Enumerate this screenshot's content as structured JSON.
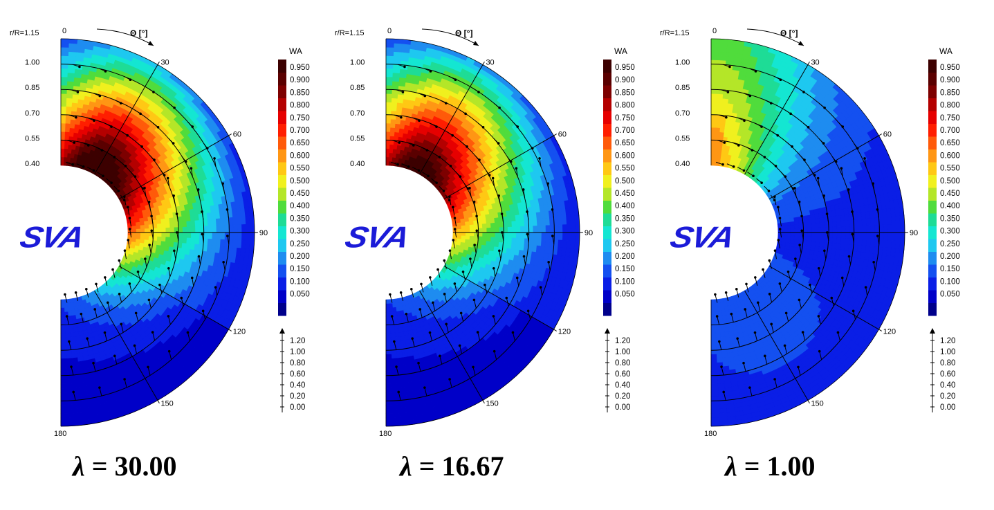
{
  "colors": {
    "bands": [
      "#00008b",
      "#0000c8",
      "#0a1ee6",
      "#1450f0",
      "#1e8cf0",
      "#1ec8f0",
      "#14e6d2",
      "#1edc96",
      "#50dc3c",
      "#b4e628",
      "#f0f01e",
      "#ffc814",
      "#ff9614",
      "#ff5a0a",
      "#ff1e00",
      "#e60000",
      "#b40000",
      "#7d0000",
      "#5a0000",
      "#3c0000"
    ],
    "logo": "#1b1bd8"
  },
  "logo_text": "SVA",
  "colorbar": {
    "title": "WA",
    "labels": [
      "0.950",
      "0.900",
      "0.850",
      "0.800",
      "0.750",
      "0.700",
      "0.650",
      "0.600",
      "0.550",
      "0.500",
      "0.450",
      "0.400",
      "0.350",
      "0.300",
      "0.250",
      "0.200",
      "0.150",
      "0.100",
      "0.050"
    ]
  },
  "vector_legend": {
    "labels": [
      "1.20",
      "1.00",
      "0.80",
      "0.60",
      "0.40",
      "0.20",
      "0.00"
    ]
  },
  "polar_axes": {
    "radius_title": "r/R=1.15",
    "radius_labels": [
      "1.00",
      "0.85",
      "0.70",
      "0.55",
      "0.40"
    ],
    "angle_title": "Θ [°]",
    "angle_labels": [
      "0",
      "30",
      "60",
      "90",
      "120",
      "150",
      "180"
    ]
  },
  "chart_data": [
    {
      "type": "heatmap",
      "subtitle_symbol": "λ",
      "subtitle_value": "= 30.00",
      "variable": "WA",
      "r_range": [
        0.4,
        1.15
      ],
      "theta_range": [
        0,
        180
      ],
      "hub_value": 0.95,
      "peak_theta": 40,
      "radial_rings": [
        0.55,
        0.7,
        0.85,
        1.0
      ],
      "notes": "wake fraction high (0.9-0.95) near hub at theta 0-90, decreasing to ~0.15 at tip"
    },
    {
      "type": "heatmap",
      "subtitle_symbol": "λ",
      "subtitle_value": "= 16.67",
      "variable": "WA",
      "r_range": [
        0.4,
        1.15
      ],
      "theta_range": [
        0,
        180
      ],
      "hub_value": 0.9,
      "peak_theta": 35,
      "radial_rings": [
        0.55,
        0.7,
        0.85,
        1.0
      ],
      "notes": "similar to lambda 30 with slightly lower values"
    },
    {
      "type": "heatmap",
      "subtitle_symbol": "λ",
      "subtitle_value": "= 1.00",
      "variable": "WA",
      "r_range": [
        0.4,
        1.15
      ],
      "theta_range": [
        0,
        180
      ],
      "hub_value": 0.65,
      "peak_theta": 10,
      "radial_rings": [
        0.55,
        0.7,
        0.85,
        1.0
      ],
      "notes": "wake fraction mostly 0.15-0.35, peak ~0.65 near theta 0 at hub"
    }
  ]
}
